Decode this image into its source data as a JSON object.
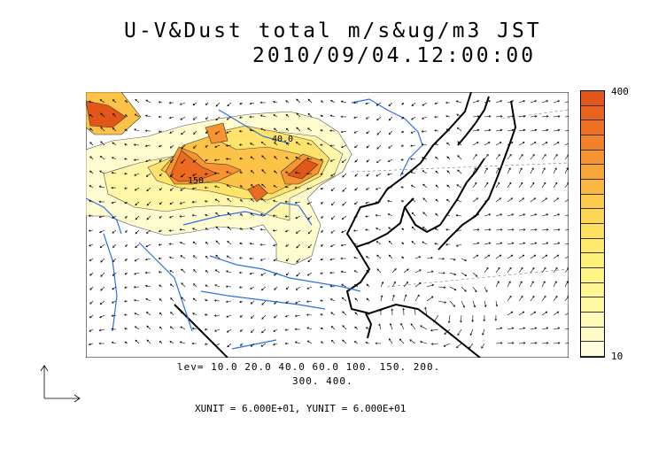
{
  "title": {
    "line1": "U-V&Dust total m/s&ug/m3 JST",
    "line2": "2010/09/04.12:00:00"
  },
  "levels_text": {
    "line1": "lev= 10.0 20.0 40.0 60.0 100. 150. 200.",
    "line2": "300. 400."
  },
  "units_text": "XUNIT = 6.000E+01, YUNIT = 6.000E+01",
  "contour_labels": [
    "40.0",
    "150"
  ],
  "colorbar": {
    "max_label": "400",
    "min_label": "10",
    "colors": [
      "#e2561a",
      "#e96320",
      "#ee7225",
      "#f2822a",
      "#f59431",
      "#f8a639",
      "#fab843",
      "#fcca4c",
      "#fdd657",
      "#fee061",
      "#ffe96c",
      "#fff077",
      "#fff485",
      "#fff693",
      "#fff8a3",
      "#fffab5",
      "#fffcc8",
      "#fffddc"
    ]
  },
  "dust_levels": [
    10,
    20,
    40,
    60,
    100,
    150,
    200,
    300,
    400
  ],
  "colors": {
    "rivers": "#2f6fe8",
    "coast": "#000000"
  }
}
